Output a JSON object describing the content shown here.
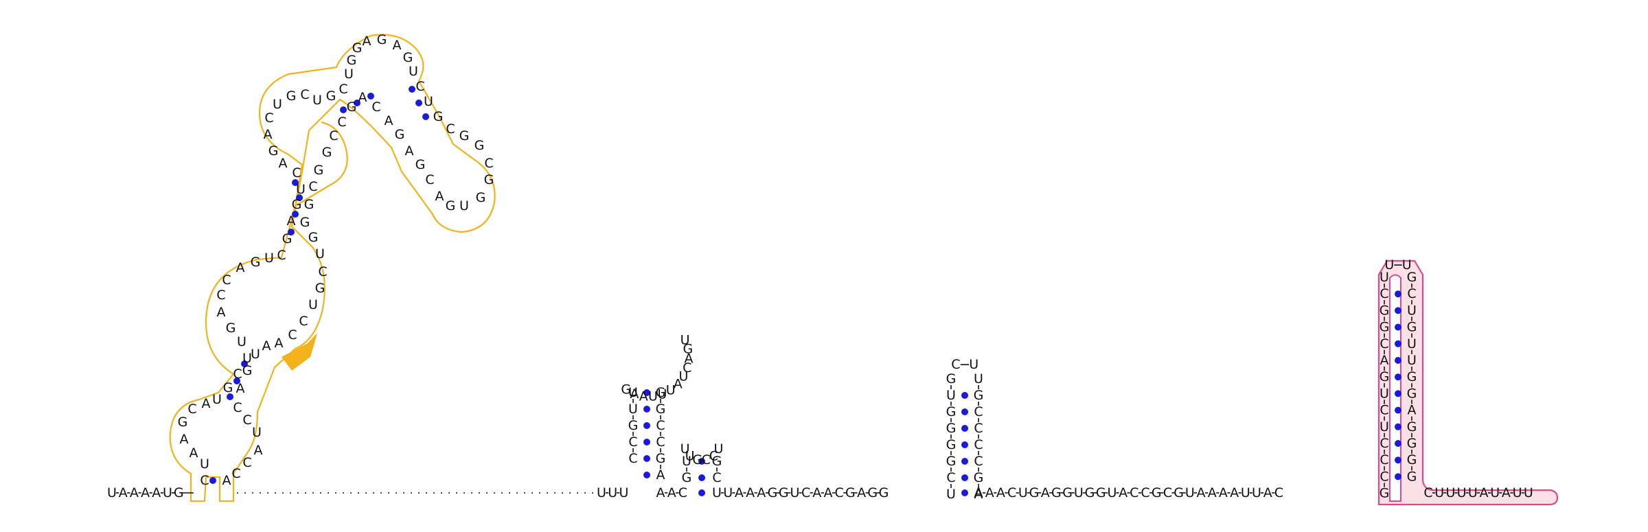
{
  "strand_5prime": "UAAAAUG",
  "strand_hairpin1": "UUUAAGUUAUCAGUUGCCCCAAAC",
  "strand_hairpin2": "GUUGCCUGC",
  "strand_middle": "UUAAAGGUCAACGAGG",
  "strand_hairpin3": "UUGGGGCUUACCCCGA",
  "strand_linker": "AAACUGAGGUGGUACCGCGUAAAAUUAC",
  "strand_pink_stem_5prime": "GCCCUCUGACGGCU",
  "strand_pink_loop": "UU",
  "strand_pink_stem_3prime": "GCUGUUGGAGGGG",
  "strand_3prime": "CUUUUAUAUU",
  "branch_letters": [
    "C",
    "U",
    "A",
    "A",
    "G",
    "C",
    "A",
    "U",
    "G",
    "C",
    "U",
    "U",
    "G",
    "A",
    "C",
    "C",
    "A",
    "G",
    "U",
    "C",
    "G",
    "A",
    "G",
    "U",
    "C",
    "A",
    "G",
    "A",
    "C",
    "U",
    "G",
    "C",
    "U",
    "G",
    "C",
    "U",
    "G",
    "G"
  ],
  "colors": {
    "base_pair_dot": "#1a1adb",
    "outline_yellow": "#f2b21b",
    "outline_pink": "#dd4a86",
    "fill_pink": "#fbe0e8",
    "highlight": "#f2b21b"
  }
}
